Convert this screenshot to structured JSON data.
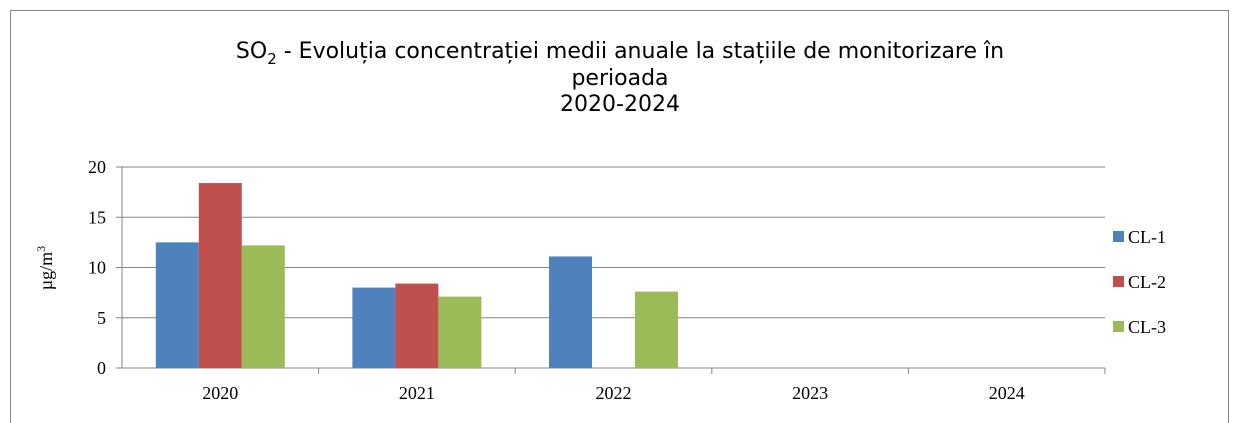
{
  "chart_data": {
    "type": "bar",
    "title": [
      "SO",
      "2",
      " - Evoluția concentrației medii anuale la stațiile de monitorizare  în",
      "perioada",
      "2020-2024"
    ],
    "y_label": [
      "µg/m",
      "3"
    ],
    "categories": [
      "2020",
      "2021",
      "2022",
      "2023",
      "2024"
    ],
    "series": [
      {
        "name": "CL-1",
        "color": "#4f81bd",
        "values": [
          12.5,
          8,
          11.1,
          null,
          null
        ]
      },
      {
        "name": "CL-2",
        "color": "#c0504d",
        "values": [
          18.4,
          8.4,
          null,
          null,
          null
        ]
      },
      {
        "name": "CL-3",
        "color": "#9bbb59",
        "values": [
          12.2,
          7.1,
          7.6,
          null,
          null
        ]
      }
    ],
    "ylim": [
      0,
      20
    ],
    "yticks": [
      0,
      5,
      10,
      15,
      20
    ],
    "grid": true,
    "legend": "right"
  }
}
